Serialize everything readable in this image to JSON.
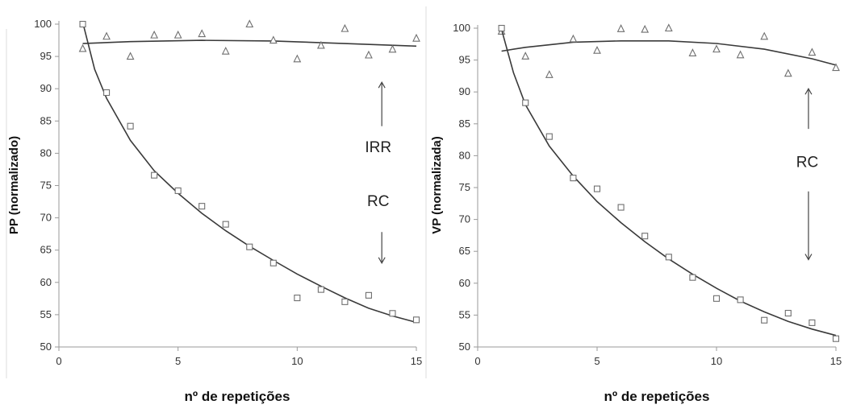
{
  "chart_data": [
    {
      "type": "scatter",
      "title": "",
      "xlabel": "nº de repetições",
      "ylabel": "PP (normalizado)",
      "xlim": [
        0,
        15
      ],
      "ylim": [
        50,
        100
      ],
      "xticks": [
        0,
        5,
        10,
        15
      ],
      "yticks": [
        50,
        55,
        60,
        65,
        70,
        75,
        80,
        85,
        90,
        95,
        100
      ],
      "grid": false,
      "series": [
        {
          "marker": "triangle",
          "x": [
            1,
            2,
            3,
            4,
            5,
            6,
            7,
            8,
            9,
            10,
            11,
            12,
            13,
            14,
            15
          ],
          "y": [
            96.2,
            98.1,
            95.0,
            98.3,
            98.3,
            98.5,
            95.8,
            100.0,
            97.5,
            94.6,
            96.7,
            99.3,
            95.2,
            96.1,
            97.8
          ],
          "fit_line": [
            [
              1,
              97.0
            ],
            [
              3,
              97.3
            ],
            [
              6,
              97.5
            ],
            [
              9,
              97.4
            ],
            [
              12,
              97.0
            ],
            [
              15,
              96.6
            ]
          ]
        },
        {
          "marker": "square",
          "x": [
            1,
            2,
            3,
            4,
            5,
            6,
            7,
            8,
            9,
            10,
            11,
            12,
            13,
            14,
            15
          ],
          "y": [
            100.0,
            89.4,
            84.2,
            76.6,
            74.2,
            71.8,
            69.0,
            65.5,
            63.0,
            57.6,
            58.9,
            57.0,
            58.0,
            55.2,
            54.2
          ],
          "fit_line": [
            [
              1,
              100.3
            ],
            [
              1.5,
              93.0
            ],
            [
              2,
              88.5
            ],
            [
              3,
              82.0
            ],
            [
              4,
              77.3
            ],
            [
              5,
              73.8
            ],
            [
              6,
              70.7
            ],
            [
              7,
              68.0
            ],
            [
              8,
              65.6
            ],
            [
              9,
              63.4
            ],
            [
              10,
              61.3
            ],
            [
              11,
              59.4
            ],
            [
              12,
              57.6
            ],
            [
              13,
              56.0
            ],
            [
              14,
              54.8
            ],
            [
              15,
              53.8
            ]
          ]
        }
      ],
      "annotations": [
        {
          "text": "IRR",
          "x": 13.4,
          "y": 80.2
        },
        {
          "text": "RC",
          "x": 13.4,
          "y": 71.8
        }
      ],
      "arrows": [
        {
          "direction": "up",
          "x": 13.55,
          "y_from": 84.2,
          "y_to": 91.0
        },
        {
          "direction": "down",
          "x": 13.55,
          "y_from": 67.8,
          "y_to": 63.0
        }
      ]
    },
    {
      "type": "scatter",
      "title": "",
      "xlabel": "nº de repetições",
      "ylabel": "VP (normalizada)",
      "xlim": [
        0,
        15
      ],
      "ylim": [
        50,
        100
      ],
      "xticks": [
        0,
        5,
        10,
        15
      ],
      "yticks": [
        50,
        55,
        60,
        65,
        70,
        75,
        80,
        85,
        90,
        95,
        100
      ],
      "grid": false,
      "series": [
        {
          "marker": "triangle",
          "x": [
            1,
            2,
            3,
            4,
            5,
            6,
            7,
            8,
            9,
            10,
            11,
            12,
            13,
            14,
            15
          ],
          "y": [
            99.5,
            95.6,
            92.7,
            98.3,
            96.5,
            99.9,
            99.8,
            100.0,
            96.1,
            96.7,
            95.8,
            98.7,
            92.9,
            96.2,
            93.8
          ],
          "fit_line": [
            [
              1,
              96.4
            ],
            [
              2,
              97.0
            ],
            [
              4,
              97.8
            ],
            [
              6,
              98.0
            ],
            [
              8,
              98.0
            ],
            [
              10,
              97.6
            ],
            [
              12,
              96.7
            ],
            [
              14,
              95.2
            ],
            [
              15,
              94.2
            ]
          ]
        },
        {
          "marker": "square",
          "x": [
            1,
            2,
            3,
            4,
            5,
            6,
            7,
            8,
            9,
            10,
            11,
            12,
            13,
            14,
            15
          ],
          "y": [
            100.0,
            88.3,
            83.0,
            76.5,
            74.8,
            71.9,
            67.4,
            64.1,
            60.9,
            57.6,
            57.4,
            54.2,
            55.3,
            53.8,
            51.3
          ],
          "fit_line": [
            [
              1,
              99.8
            ],
            [
              1.5,
              93.0
            ],
            [
              2,
              88.0
            ],
            [
              3,
              81.5
            ],
            [
              4,
              76.8
            ],
            [
              5,
              72.8
            ],
            [
              6,
              69.5
            ],
            [
              7,
              66.5
            ],
            [
              8,
              63.8
            ],
            [
              9,
              61.4
            ],
            [
              10,
              59.2
            ],
            [
              11,
              57.2
            ],
            [
              12,
              55.5
            ],
            [
              13,
              54.0
            ],
            [
              14,
              52.8
            ],
            [
              15,
              51.8
            ]
          ]
        }
      ],
      "annotations": [
        {
          "text": "RC",
          "x": 13.8,
          "y": 78.2
        }
      ],
      "arrows": [
        {
          "direction": "up",
          "x": 13.85,
          "y_from": 84.2,
          "y_to": 90.5
        },
        {
          "direction": "down",
          "x": 13.85,
          "y_from": 74.4,
          "y_to": 63.7
        }
      ]
    }
  ]
}
